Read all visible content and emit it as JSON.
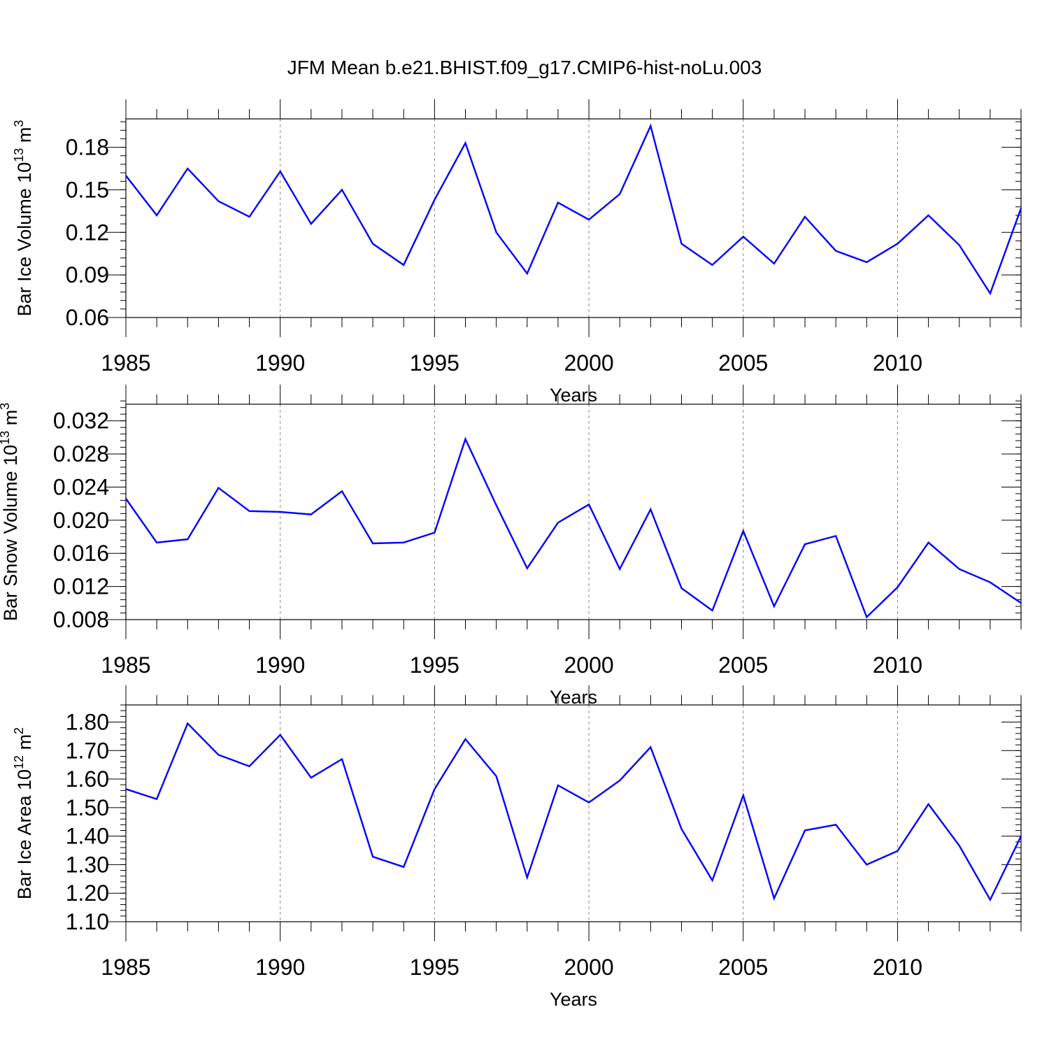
{
  "title": "JFM Mean b.e21.BHIST.f09_g17.CMIP6-hist-noLu.003",
  "colors": {
    "line": "#0000ff",
    "frame": "#000000",
    "grid": "#888888"
  },
  "chart_data": [
    {
      "type": "line",
      "ylabel": "Bar Ice Volume 10",
      "ylabel_exp": "13",
      "ylabel_unit": " m",
      "ylabel_unit_exp": "3",
      "xlabel": "Years",
      "xlim": [
        1985,
        2014
      ],
      "ylim": [
        0.06,
        0.2
      ],
      "yticks": [
        0.06,
        0.09,
        0.12,
        0.15,
        0.18
      ],
      "ytick_labels": [
        "0.06",
        "0.09",
        "0.12",
        "0.15",
        "0.18"
      ],
      "yminor_step": 0.006,
      "xticks": [
        1985,
        1990,
        1995,
        2000,
        2005,
        2010
      ],
      "xtick_labels": [
        "1985",
        "1990",
        "1995",
        "2000",
        "2005",
        "2010"
      ],
      "grid": "dashed vertical at major x ticks",
      "x": [
        1985,
        1986,
        1987,
        1988,
        1989,
        1990,
        1991,
        1992,
        1993,
        1994,
        1995,
        1996,
        1997,
        1998,
        1999,
        2000,
        2001,
        2002,
        2003,
        2004,
        2005,
        2006,
        2007,
        2008,
        2009,
        2010,
        2011,
        2012,
        2013,
        2014
      ],
      "values": [
        0.16,
        0.132,
        0.165,
        0.142,
        0.131,
        0.163,
        0.126,
        0.15,
        0.112,
        0.097,
        0.143,
        0.183,
        0.12,
        0.091,
        0.141,
        0.129,
        0.147,
        0.195,
        0.112,
        0.097,
        0.117,
        0.098,
        0.131,
        0.107,
        0.099,
        0.112,
        0.132,
        0.111,
        0.077,
        0.137
      ]
    },
    {
      "type": "line",
      "ylabel": "Bar Snow Volume 10",
      "ylabel_exp": "13",
      "ylabel_unit": " m",
      "ylabel_unit_exp": "3",
      "xlabel": "Years",
      "xlim": [
        1985,
        2014
      ],
      "ylim": [
        0.008,
        0.034
      ],
      "yticks": [
        0.008,
        0.012,
        0.016,
        0.02,
        0.024,
        0.028,
        0.032
      ],
      "ytick_labels": [
        "0.008",
        "0.012",
        "0.016",
        "0.020",
        "0.024",
        "0.028",
        "0.032"
      ],
      "yminor_step": 0.0008,
      "xticks": [
        1985,
        1990,
        1995,
        2000,
        2005,
        2010
      ],
      "xtick_labels": [
        "1985",
        "1990",
        "1995",
        "2000",
        "2005",
        "2010"
      ],
      "grid": "dashed vertical at major x ticks",
      "x": [
        1985,
        1986,
        1987,
        1988,
        1989,
        1990,
        1991,
        1992,
        1993,
        1994,
        1995,
        1996,
        1997,
        1998,
        1999,
        2000,
        2001,
        2002,
        2003,
        2004,
        2005,
        2006,
        2007,
        2008,
        2009,
        2010,
        2011,
        2012,
        2013,
        2014
      ],
      "values": [
        0.0226,
        0.0173,
        0.0177,
        0.0239,
        0.0211,
        0.021,
        0.0207,
        0.0235,
        0.0172,
        0.0173,
        0.0185,
        0.0298,
        0.0218,
        0.0142,
        0.0197,
        0.0219,
        0.0141,
        0.0213,
        0.0118,
        0.0091,
        0.0187,
        0.0096,
        0.0171,
        0.0181,
        0.0083,
        0.0119,
        0.0173,
        0.0141,
        0.0125,
        0.01
      ]
    },
    {
      "type": "line",
      "ylabel": "Bar Ice Area 10",
      "ylabel_exp": "12",
      "ylabel_unit": " m",
      "ylabel_unit_exp": "2",
      "xlabel": "Years",
      "xlim": [
        1985,
        2014
      ],
      "ylim": [
        1.1,
        1.86
      ],
      "yticks": [
        1.1,
        1.2,
        1.3,
        1.4,
        1.5,
        1.6,
        1.7,
        1.8
      ],
      "ytick_labels": [
        "1.10",
        "1.20",
        "1.30",
        "1.40",
        "1.50",
        "1.60",
        "1.70",
        "1.80"
      ],
      "yminor_step": 0.02,
      "xticks": [
        1985,
        1990,
        1995,
        2000,
        2005,
        2010
      ],
      "xtick_labels": [
        "1985",
        "1990",
        "1995",
        "2000",
        "2005",
        "2010"
      ],
      "grid": "dashed vertical at major x ticks",
      "x": [
        1985,
        1986,
        1987,
        1988,
        1989,
        1990,
        1991,
        1992,
        1993,
        1994,
        1995,
        1996,
        1997,
        1998,
        1999,
        2000,
        2001,
        2002,
        2003,
        2004,
        2005,
        2006,
        2007,
        2008,
        2009,
        2010,
        2011,
        2012,
        2013,
        2014
      ],
      "values": [
        1.565,
        1.53,
        1.795,
        1.685,
        1.645,
        1.755,
        1.605,
        1.67,
        1.328,
        1.292,
        1.565,
        1.74,
        1.61,
        1.255,
        1.578,
        1.518,
        1.595,
        1.712,
        1.425,
        1.245,
        1.543,
        1.182,
        1.42,
        1.44,
        1.3,
        1.348,
        1.512,
        1.367,
        1.177,
        1.4
      ]
    }
  ]
}
